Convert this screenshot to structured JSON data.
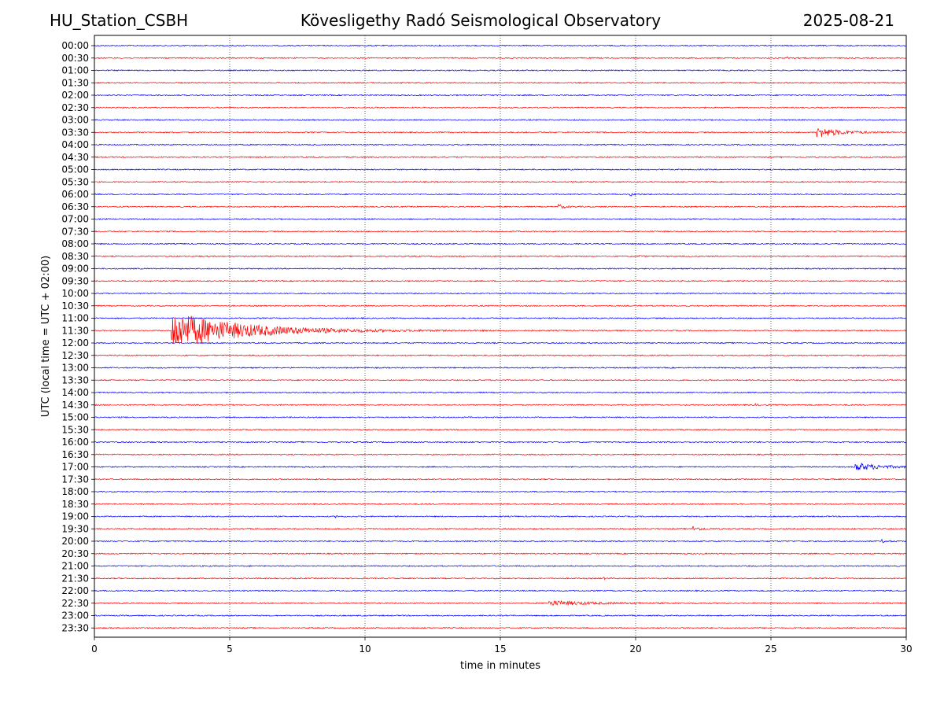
{
  "header": {
    "station": "HU_Station_CSBH",
    "title": "Kövesligethy Radó Seismological Observatory",
    "date": "2025-08-21"
  },
  "chart_data": {
    "type": "line",
    "title": "Kövesligethy Radó Seismological Observatory",
    "xlabel": "time in minutes",
    "ylabel": "UTC (local time = UTC + 02:00)",
    "xlim": [
      0,
      30
    ],
    "xticks": [
      0,
      5,
      10,
      15,
      20,
      25,
      30
    ],
    "grid": "vertical dotted at x ticks",
    "trace_colors": [
      "#0000ff",
      "#ff0000"
    ],
    "series": [
      {
        "label": "00:00"
      },
      {
        "label": "00:30"
      },
      {
        "label": "01:00"
      },
      {
        "label": "01:30"
      },
      {
        "label": "02:00"
      },
      {
        "label": "02:30"
      },
      {
        "label": "03:00"
      },
      {
        "label": "03:30"
      },
      {
        "label": "04:00"
      },
      {
        "label": "04:30"
      },
      {
        "label": "05:00"
      },
      {
        "label": "05:30"
      },
      {
        "label": "06:00"
      },
      {
        "label": "06:30"
      },
      {
        "label": "07:00"
      },
      {
        "label": "07:30"
      },
      {
        "label": "08:00"
      },
      {
        "label": "08:30"
      },
      {
        "label": "09:00"
      },
      {
        "label": "09:30"
      },
      {
        "label": "10:00"
      },
      {
        "label": "10:30"
      },
      {
        "label": "11:00"
      },
      {
        "label": "11:30"
      },
      {
        "label": "12:00"
      },
      {
        "label": "12:30"
      },
      {
        "label": "13:00"
      },
      {
        "label": "13:30"
      },
      {
        "label": "14:00"
      },
      {
        "label": "14:30"
      },
      {
        "label": "15:00"
      },
      {
        "label": "15:30"
      },
      {
        "label": "16:00"
      },
      {
        "label": "16:30"
      },
      {
        "label": "17:00"
      },
      {
        "label": "17:30"
      },
      {
        "label": "18:00"
      },
      {
        "label": "18:30"
      },
      {
        "label": "19:00"
      },
      {
        "label": "19:30"
      },
      {
        "label": "20:00"
      },
      {
        "label": "20:30"
      },
      {
        "label": "21:00"
      },
      {
        "label": "21:30"
      },
      {
        "label": "22:00"
      },
      {
        "label": "22:30"
      },
      {
        "label": "23:00"
      },
      {
        "label": "23:30"
      }
    ],
    "events": [
      {
        "trace": "00:30",
        "start": 25.6,
        "amp": 0.2,
        "dur": 0.6
      },
      {
        "trace": "03:30",
        "start": 26.7,
        "amp": 1.1,
        "dur": 1.8
      },
      {
        "trace": "05:30",
        "start": 17.6,
        "amp": 0.2,
        "dur": 0.3
      },
      {
        "trace": "06:00",
        "start": 19.8,
        "amp": 0.3,
        "dur": 0.4
      },
      {
        "trace": "06:30",
        "start": 17.1,
        "amp": 0.5,
        "dur": 0.6
      },
      {
        "trace": "08:30",
        "start": 20.1,
        "amp": 0.2,
        "dur": 0.3
      },
      {
        "trace": "11:30",
        "start": 2.85,
        "amp": 4.0,
        "dur": 5.5
      },
      {
        "trace": "14:30",
        "start": 24.4,
        "amp": 0.2,
        "dur": 0.5
      },
      {
        "trace": "17:00",
        "start": 28.1,
        "amp": 0.9,
        "dur": 1.9
      },
      {
        "trace": "19:00",
        "start": 8.9,
        "amp": 0.2,
        "dur": 0.4
      },
      {
        "trace": "19:30",
        "start": 22.1,
        "amp": 0.5,
        "dur": 0.7
      },
      {
        "trace": "20:00",
        "start": 29.1,
        "amp": 0.3,
        "dur": 0.4
      },
      {
        "trace": "21:30",
        "start": 18.8,
        "amp": 0.2,
        "dur": 0.3
      },
      {
        "trace": "22:30",
        "start": 16.8,
        "amp": 0.5,
        "dur": 3.5
      }
    ]
  }
}
